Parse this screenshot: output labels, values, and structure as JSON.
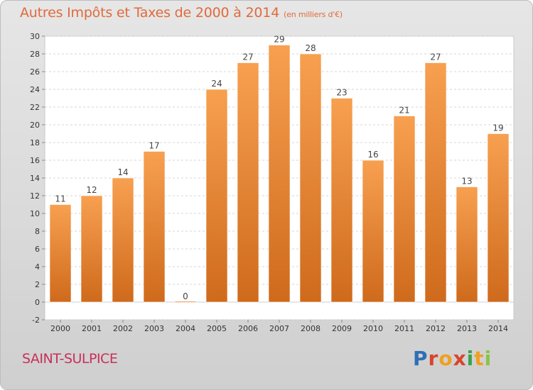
{
  "chart_data": {
    "type": "bar",
    "title": "Autres Impôts et Taxes de 2000 à 2014",
    "subtitle": "(en milliers d'€)",
    "categories": [
      "2000",
      "2001",
      "2002",
      "2003",
      "2004",
      "2005",
      "2006",
      "2007",
      "2008",
      "2009",
      "2010",
      "2011",
      "2012",
      "2013",
      "2014"
    ],
    "values": [
      11,
      12,
      14,
      17,
      0,
      24,
      27,
      29,
      28,
      23,
      16,
      21,
      27,
      13,
      19
    ],
    "ylim": [
      -2,
      30
    ],
    "yticks": [
      -2,
      0,
      2,
      4,
      6,
      8,
      10,
      12,
      14,
      16,
      18,
      20,
      22,
      24,
      26,
      28,
      30
    ],
    "grid": true,
    "bar_color": "#f08a2c",
    "xlabel": "",
    "ylabel": ""
  },
  "footer": {
    "commune": "SAINT-SULPICE",
    "brand_letters": [
      "P",
      "r",
      "o",
      "x",
      "i",
      "t",
      "i"
    ]
  }
}
